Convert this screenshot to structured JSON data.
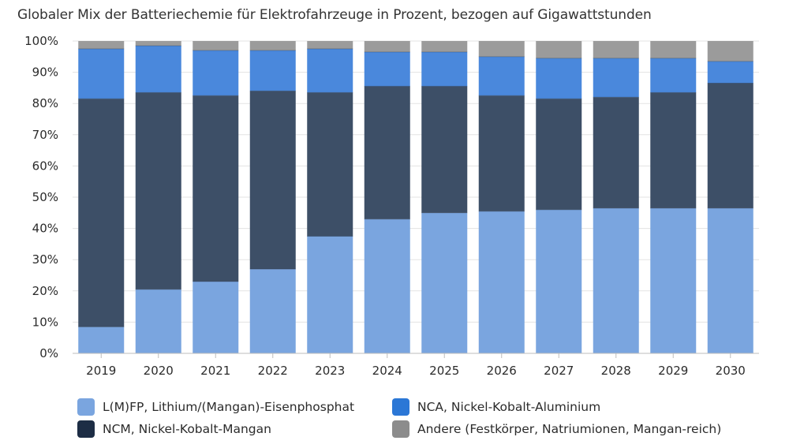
{
  "chart_data": {
    "type": "bar",
    "stacked": true,
    "title": "Globaler Mix der Batteriechemie für Elektrofahrzeuge in Prozent, bezogen auf Gigawattstunden",
    "xlabel": "",
    "ylabel": "",
    "ylim": [
      0,
      100
    ],
    "yticks": [
      "0%",
      "10%",
      "20%",
      "30%",
      "40%",
      "50%",
      "60%",
      "70%",
      "80%",
      "90%",
      "100%"
    ],
    "grid": true,
    "categories": [
      "2019",
      "2020",
      "2021",
      "2022",
      "2023",
      "2024",
      "2025",
      "2026",
      "2027",
      "2028",
      "2029",
      "2030"
    ],
    "series": [
      {
        "name": "L(M)FP, Lithium/(Mangan)-Eisenphosphat",
        "color": "#7aa5df",
        "values": [
          8.5,
          20.5,
          23,
          27,
          37.5,
          43,
          45,
          45.5,
          46,
          46.5,
          46.5,
          46.5
        ]
      },
      {
        "name": "NCM, Nickel-Kobalt-Mangan",
        "color": "#3d4f67",
        "values": [
          73,
          63,
          59.5,
          57,
          46,
          42.5,
          40.5,
          37,
          35.5,
          35.5,
          37,
          40
        ]
      },
      {
        "name": "NCA, Nickel-Kobalt-Aluminium",
        "color": "#4a88dc",
        "values": [
          16,
          15,
          14.5,
          13,
          14,
          11,
          11,
          12.5,
          13,
          12.5,
          11,
          7
        ]
      },
      {
        "name": "Andere (Festkörper, Natriumionen, Mangan-reich)",
        "color": "#9b9b9b",
        "values": [
          2.5,
          1.5,
          3,
          3,
          2.5,
          3.5,
          3.5,
          5,
          5.5,
          5.5,
          5.5,
          6.5
        ]
      }
    ],
    "legend_position": "bottom"
  }
}
